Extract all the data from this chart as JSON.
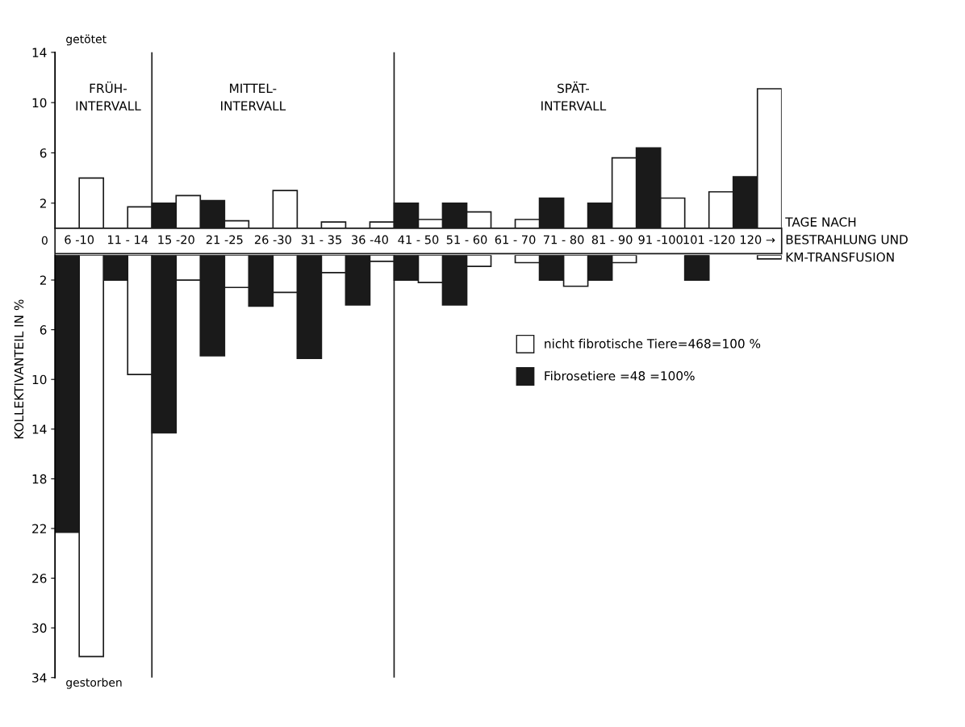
{
  "chart_data": [
    {
      "type": "bar",
      "xlabel": "TAGE NACH\nBESTRAHLUNG UND\nKM-TRANSFUSION",
      "categories": [
        "6 -10",
        "11 - 14",
        "15 -20",
        "21 -25",
        "26 -30",
        "31 - 35",
        "36 -40",
        "41 - 50",
        "51 - 60",
        "61 - 70",
        "71 - 80",
        "81 - 90",
        "91 -100",
        "101 -120",
        "120 →"
      ],
      "series": [
        {
          "name": "Fibrosetiere =48 =100%",
          "color": "#1a1a1a",
          "values": [
            null,
            null,
            2,
            2.2,
            null,
            null,
            null,
            2,
            2,
            null,
            2.4,
            2,
            6.4,
            null,
            4.1
          ]
        },
        {
          "name": "nicht fibrotische Tiere=468=100 %",
          "color": "#ffffff",
          "values": [
            4,
            1.7,
            2.6,
            0.6,
            3,
            0.5,
            0.5,
            0.7,
            1.3,
            0.7,
            null,
            5.6,
            2.4,
            2.9,
            11.1
          ]
        }
      ],
      "ylim": [
        0,
        14
      ],
      "yticks": [
        14,
        10,
        6,
        2
      ],
      "tick_labels": "xy",
      "grid": false,
      "legend": "right",
      "annotations": [
        "getötet",
        "0",
        "FRÜH-\nINTERVALL",
        "MITTEL-\nINTERVALL",
        "SPÄT-\nINTERVALL"
      ]
    },
    {
      "type": "bar",
      "ylabel": "KOLLEKTIVANTEIL IN %",
      "categories": [
        null,
        null,
        null,
        null,
        null,
        null,
        null,
        null,
        null,
        null,
        null,
        null,
        null,
        null,
        null
      ],
      "series": [
        {
          "color": "#1a1a1a",
          "values": [
            22.3,
            2,
            14.3,
            8.1,
            4.1,
            8.3,
            4,
            2,
            4,
            null,
            2,
            2,
            null,
            2,
            null
          ]
        },
        {
          "color": "#ffffff",
          "values": [
            32.3,
            9.6,
            2,
            2.6,
            3,
            1.4,
            0.5,
            2.2,
            0.9,
            0.6,
            2.5,
            0.6,
            null,
            null,
            0.3
          ]
        }
      ],
      "ylim": [
        34,
        0
      ],
      "yticks": [
        2,
        6,
        10,
        14,
        18,
        22,
        26,
        30,
        34
      ],
      "tick_labels": "y",
      "grid": false,
      "annotations": [
        "gestorben"
      ]
    }
  ]
}
